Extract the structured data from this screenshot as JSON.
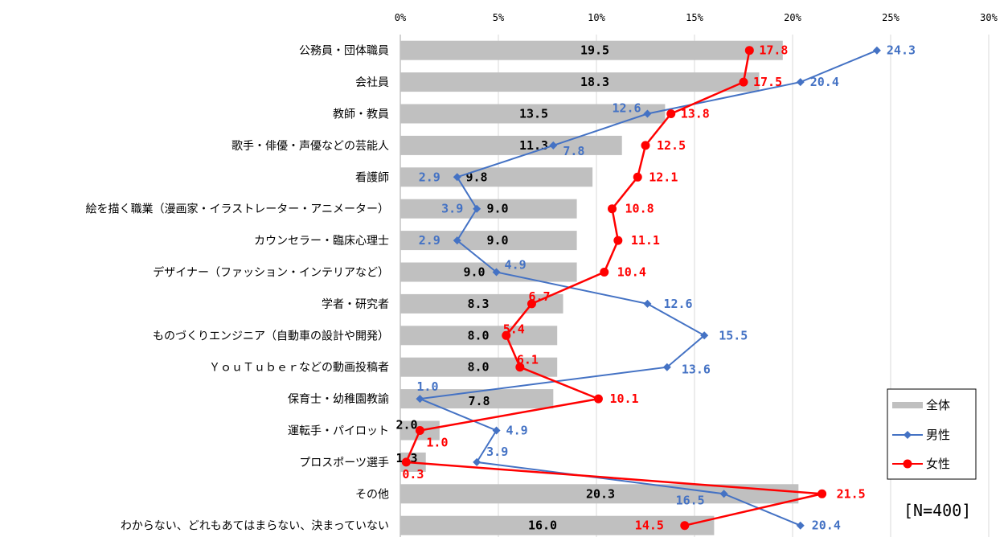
{
  "chart_data": {
    "type": "bar",
    "categories": [
      "公務員・団体職員",
      "会社員",
      "教師・教員",
      "歌手・俳優・声優などの芸能人",
      "看護師",
      "絵を描く職業（漫画家・イラストレーター・アニメーター）",
      "カウンセラー・臨床心理士",
      "デザイナー（ファッション・インテリアなど）",
      "学者・研究者",
      "ものづくりエンジニア（自動車の設計や開発）",
      "ＹｏｕＴｕｂｅｒなどの動画投稿者",
      "保育士・幼稚園教諭",
      "運転手・パイロット",
      "プロスポーツ選手",
      "その他",
      "わからない、どれもあてはまらない、決まっていない"
    ],
    "series": [
      {
        "name": "全体",
        "type": "bar",
        "color": "#c0c0c0",
        "label_color": "#000000",
        "values": [
          19.5,
          18.3,
          13.5,
          11.3,
          9.8,
          9.0,
          9.0,
          9.0,
          8.3,
          8.0,
          8.0,
          7.8,
          2.0,
          1.3,
          20.3,
          16.0
        ],
        "labels": [
          "19.5",
          "18.3",
          "13.5",
          "11.3",
          "9.8",
          "9.0",
          "9.0",
          "9.0",
          "8.3",
          "8.0",
          "8.0",
          "7.8",
          "2.0",
          "1.3",
          "20.3",
          "16.0"
        ]
      },
      {
        "name": "男性",
        "type": "line",
        "marker": "diamond",
        "color": "#4472c4",
        "label_color": "#4472c4",
        "values": [
          24.3,
          20.4,
          12.6,
          7.8,
          2.9,
          3.9,
          2.9,
          4.9,
          12.6,
          15.5,
          13.6,
          1.0,
          4.9,
          3.9,
          16.5,
          20.4
        ],
        "labels": [
          "24.3",
          "20.4",
          "12.6",
          "7.8",
          "2.9",
          "3.9",
          "2.9",
          "4.9",
          "12.6",
          "15.5",
          "13.6",
          "1.0",
          "4.9",
          "3.9",
          "16.5",
          "20.4"
        ]
      },
      {
        "name": "女性",
        "type": "line",
        "marker": "circle",
        "color": "#ff0000",
        "label_color": "#ff0000",
        "values": [
          17.8,
          17.5,
          13.8,
          12.5,
          12.1,
          10.8,
          11.1,
          10.4,
          6.7,
          5.4,
          6.1,
          10.1,
          1.0,
          0.3,
          21.5,
          14.5
        ],
        "labels": [
          "17.8",
          "17.5",
          "13.8",
          "12.5",
          "12.1",
          "10.8",
          "11.1",
          "10.4",
          "6.7",
          "5.4",
          "6.1",
          "10.1",
          "1.0",
          "0.3",
          "21.5",
          "14.5"
        ]
      }
    ],
    "xlim": [
      0,
      30
    ],
    "xticks": [
      "0%",
      "5%",
      "10%",
      "15%",
      "20%",
      "25%",
      "30%"
    ],
    "xtick_values": [
      0,
      5,
      10,
      15,
      20,
      25,
      30
    ],
    "xaxis_position": "top",
    "grid": true,
    "legend_position": "bottom-right",
    "note": "[N=400]"
  }
}
